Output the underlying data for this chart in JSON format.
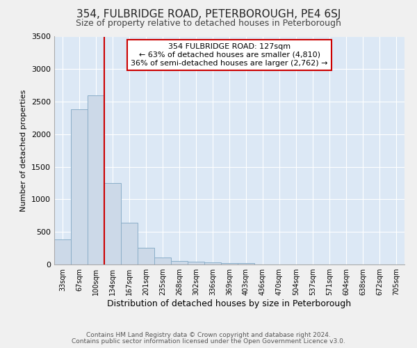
{
  "title": "354, FULBRIDGE ROAD, PETERBOROUGH, PE4 6SJ",
  "subtitle": "Size of property relative to detached houses in Peterborough",
  "xlabel": "Distribution of detached houses by size in Peterborough",
  "ylabel": "Number of detached properties",
  "bin_labels": [
    "33sqm",
    "67sqm",
    "100sqm",
    "134sqm",
    "167sqm",
    "201sqm",
    "235sqm",
    "268sqm",
    "302sqm",
    "336sqm",
    "369sqm",
    "403sqm",
    "436sqm",
    "470sqm",
    "504sqm",
    "537sqm",
    "571sqm",
    "604sqm",
    "638sqm",
    "672sqm",
    "705sqm"
  ],
  "bar_heights": [
    380,
    2380,
    2600,
    1250,
    640,
    255,
    105,
    55,
    45,
    30,
    25,
    25,
    0,
    0,
    0,
    0,
    0,
    0,
    0,
    0,
    0
  ],
  "bar_color": "#ccd9e8",
  "bar_edge_color": "#8aaec8",
  "plot_bg_color": "#dce8f5",
  "fig_bg_color": "#f0f0f0",
  "grid_color": "#ffffff",
  "red_line_color": "#cc0000",
  "property_label": "354 FULBRIDGE ROAD: 127sqm",
  "annotation_line1": "← 63% of detached houses are smaller (4,810)",
  "annotation_line2": "36% of semi-detached houses are larger (2,762) →",
  "red_line_x": 3.0,
  "ylim": [
    0,
    3500
  ],
  "yticks": [
    0,
    500,
    1000,
    1500,
    2000,
    2500,
    3000,
    3500
  ],
  "footnote1": "Contains HM Land Registry data © Crown copyright and database right 2024.",
  "footnote2": "Contains public sector information licensed under the Open Government Licence v3.0.",
  "title_fontsize": 11,
  "subtitle_fontsize": 9,
  "ylabel_fontsize": 8,
  "xlabel_fontsize": 9,
  "ytick_fontsize": 8,
  "xtick_fontsize": 7
}
